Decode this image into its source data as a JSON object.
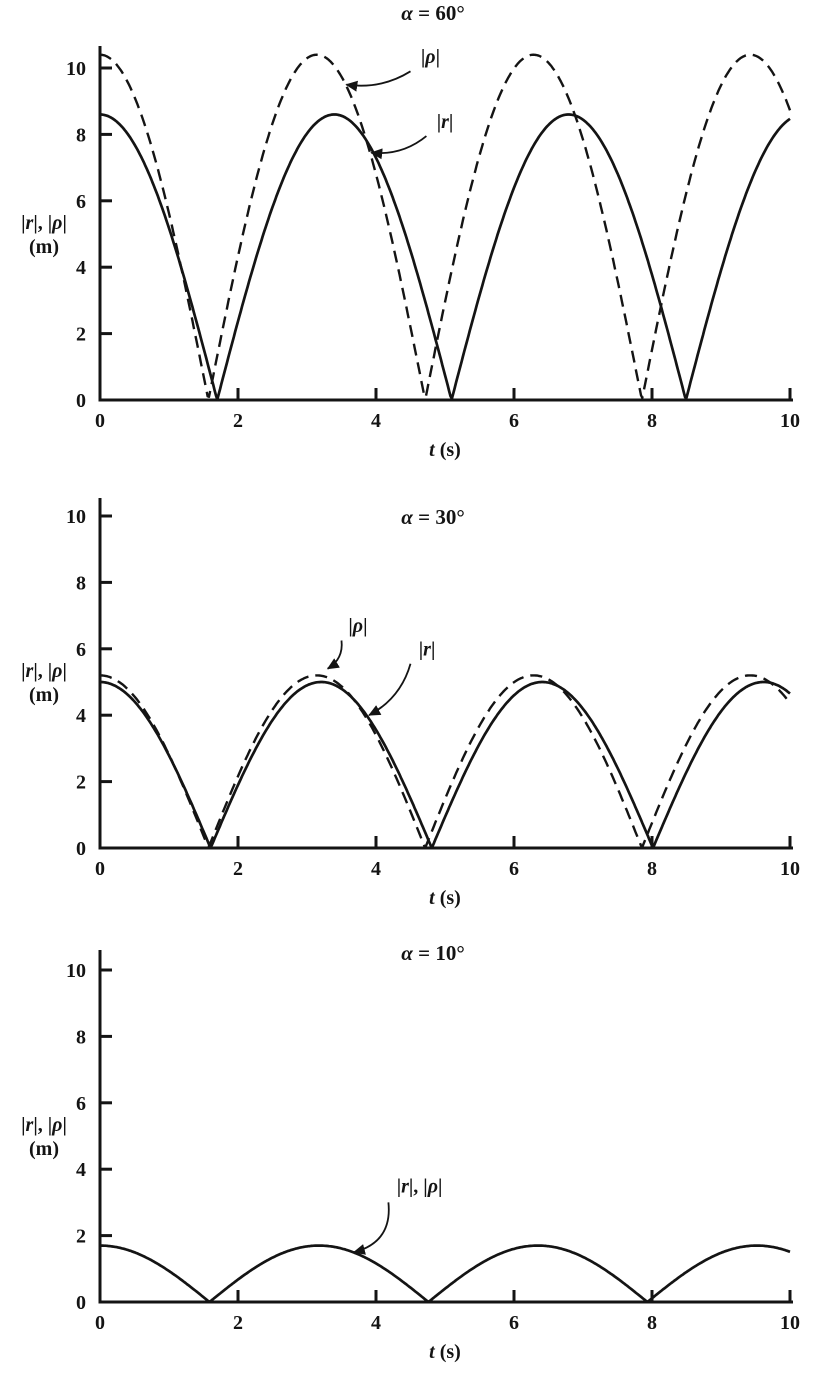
{
  "figure": {
    "background": "#ffffff",
    "ink": "#141414",
    "description": "Three stacked plots of |r| and |ρ| versus time t for angles 60°, 30°, 10°"
  },
  "chart_data": [
    {
      "id": "alpha-60",
      "type": "line",
      "alpha_deg": 60,
      "title": "α = 60°",
      "xlabel": "t (s)",
      "ylabel": "|r|, |ρ| (m)",
      "ylabel_line1": "|r|, |ρ|",
      "ylabel_line2": "(m)",
      "xlim": [
        0,
        10
      ],
      "ylim": [
        0,
        10
      ],
      "xticks": [
        0,
        2,
        4,
        6,
        8,
        10
      ],
      "yticks": [
        0,
        2,
        4,
        6,
        8,
        10
      ],
      "grid": false,
      "legend": "inline-annotations",
      "series": [
        {
          "name": "|ρ|",
          "style": "dashed",
          "model": "y = A·|cos(ω·t)|",
          "amplitude": 10.4,
          "omega": 1.0,
          "zeros": [
            1.57,
            4.71,
            7.85
          ],
          "peak_times": [
            0,
            3.14,
            6.28,
            9.42
          ]
        },
        {
          "name": "|r|",
          "style": "solid",
          "model": "y = A·|cos(ω·t)|",
          "amplitude": 8.6,
          "omega": 0.925,
          "zeros": [
            1.7,
            5.09,
            8.49
          ],
          "peak_times": [
            0,
            3.4,
            6.79
          ]
        }
      ],
      "annotations": [
        {
          "text": "|ρ|",
          "text_xy": [
            4.65,
            10.15
          ],
          "arrow_from": [
            4.5,
            9.9
          ],
          "arrow_tip": [
            3.57,
            9.5
          ],
          "bend": -12
        },
        {
          "text": "|r|",
          "text_xy": [
            4.88,
            8.2
          ],
          "arrow_from": [
            4.73,
            7.95
          ],
          "arrow_tip": [
            3.93,
            7.45
          ],
          "bend": -12
        }
      ]
    },
    {
      "id": "alpha-30",
      "type": "line",
      "alpha_deg": 30,
      "title": "α = 30°",
      "xlabel": "t (s)",
      "ylabel": "|r|, |ρ| (m)",
      "ylabel_line1": "|r|, |ρ|",
      "ylabel_line2": "(m)",
      "xlim": [
        0,
        10
      ],
      "ylim": [
        0,
        10
      ],
      "xticks": [
        0,
        2,
        4,
        6,
        8,
        10
      ],
      "yticks": [
        0,
        2,
        4,
        6,
        8,
        10
      ],
      "grid": false,
      "legend": "inline-annotations",
      "series": [
        {
          "name": "|ρ|",
          "style": "dashed",
          "model": "y = A·|cos(ω·t)|",
          "amplitude": 5.2,
          "omega": 1.0,
          "zeros": [
            1.57,
            4.71,
            7.85
          ],
          "peak_times": [
            0,
            3.14,
            6.28,
            9.42
          ]
        },
        {
          "name": "|r|",
          "style": "solid",
          "model": "y = A·|cos(ω·t)|",
          "amplitude": 5.0,
          "omega": 0.98,
          "zeros": [
            1.6,
            4.81,
            8.01
          ],
          "peak_times": [
            0,
            3.21,
            6.41,
            9.62
          ]
        }
      ],
      "annotations": [
        {
          "text": "|ρ|",
          "text_xy": [
            3.6,
            6.5
          ],
          "arrow_from": [
            3.5,
            6.25
          ],
          "arrow_tip": [
            3.3,
            5.4
          ],
          "bend": -10
        },
        {
          "text": "|r|",
          "text_xy": [
            4.62,
            5.8
          ],
          "arrow_from": [
            4.5,
            5.55
          ],
          "arrow_tip": [
            3.9,
            4.0
          ],
          "bend": -14
        }
      ]
    },
    {
      "id": "alpha-10",
      "type": "line",
      "alpha_deg": 10,
      "title": "α = 10°",
      "xlabel": "t (s)",
      "ylabel": "|r|, |ρ| (m)",
      "ylabel_line1": "|r|, |ρ|",
      "ylabel_line2": "(m)",
      "xlim": [
        0,
        10
      ],
      "ylim": [
        0,
        10
      ],
      "xticks": [
        0,
        2,
        4,
        6,
        8,
        10
      ],
      "yticks": [
        0,
        2,
        4,
        6,
        8,
        10
      ],
      "grid": false,
      "legend": "inline-annotations",
      "series": [
        {
          "name": "|r|, |ρ|",
          "style": "solid",
          "model": "y = A·|cos(ω·t)|",
          "amplitude": 1.7,
          "omega": 0.99,
          "zeros": [
            1.59,
            4.76,
            7.93
          ],
          "peak_times": [
            0,
            3.17,
            6.35,
            9.52
          ]
        }
      ],
      "annotations": [
        {
          "text": "|r|, |ρ|",
          "text_xy": [
            4.3,
            3.3
          ],
          "arrow_from": [
            4.18,
            3.0
          ],
          "arrow_tip": [
            3.68,
            1.5
          ],
          "bend": -26
        }
      ]
    }
  ]
}
